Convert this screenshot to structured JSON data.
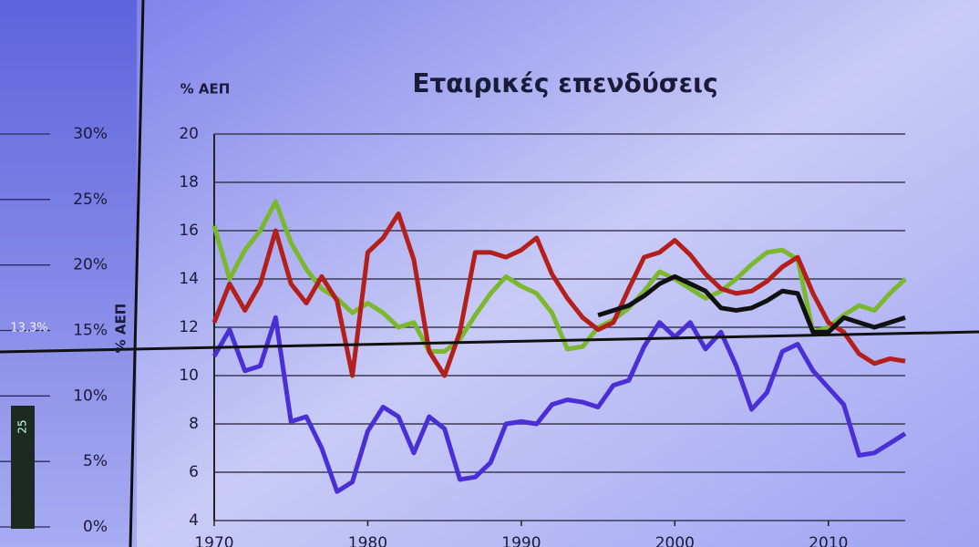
{
  "chart_data": [
    {
      "type": "line",
      "title": "Εταιρικές επενδύσεις",
      "yunit": "% ΑΕΠ",
      "ylabel": "% ΑΕΠ",
      "x": [
        1970,
        1971,
        1972,
        1973,
        1974,
        1975,
        1976,
        1977,
        1978,
        1979,
        1980,
        1981,
        1982,
        1983,
        1984,
        1985,
        1986,
        1987,
        1988,
        1989,
        1990,
        1991,
        1992,
        1993,
        1994,
        1995,
        1996,
        1997,
        1998,
        1999,
        2000,
        2001,
        2002,
        2003,
        2004,
        2005,
        2006,
        2007,
        2008,
        2009,
        2010,
        2011,
        2012,
        2013,
        2014,
        2015
      ],
      "series": [
        {
          "color": "#7cb82e",
          "values": [
            16.2,
            14.0,
            15.2,
            16.0,
            17.2,
            15.5,
            14.4,
            13.6,
            13.2,
            12.6,
            13.0,
            12.6,
            12.0,
            12.2,
            11.0,
            11.0,
            11.5,
            12.5,
            13.4,
            14.1,
            13.7,
            13.4,
            12.6,
            11.1,
            11.2,
            12.0,
            12.3,
            12.8,
            13.5,
            14.3,
            14.0,
            13.6,
            13.2,
            13.5,
            14.0,
            14.6,
            15.1,
            15.2,
            14.8,
            11.8,
            12.0,
            12.5,
            12.9,
            12.7,
            13.4,
            14.0
          ]
        },
        {
          "color": "#b3201c",
          "values": [
            12.2,
            13.8,
            12.7,
            13.8,
            16.0,
            13.8,
            13.0,
            14.1,
            13.1,
            10.0,
            15.1,
            15.7,
            16.7,
            14.8,
            11.0,
            10.0,
            11.8,
            15.1,
            15.1,
            14.9,
            15.2,
            15.7,
            14.2,
            13.2,
            12.4,
            11.9,
            12.2,
            13.6,
            14.9,
            15.1,
            15.6,
            15.0,
            14.2,
            13.6,
            13.4,
            13.5,
            13.9,
            14.5,
            14.9,
            13.4,
            12.2,
            11.8,
            10.9,
            10.5,
            10.7,
            10.6
          ]
        },
        {
          "color": "#4a2ed6",
          "values": [
            10.8,
            11.9,
            10.2,
            10.4,
            12.4,
            8.1,
            8.3,
            7.0,
            5.2,
            5.6,
            7.7,
            8.7,
            8.3,
            6.8,
            8.3,
            7.8,
            5.7,
            5.8,
            6.4,
            8.0,
            8.1,
            8.0,
            8.8,
            9.0,
            8.9,
            8.7,
            9.6,
            9.8,
            11.2,
            12.2,
            11.6,
            12.2,
            11.1,
            11.8,
            10.4,
            8.6,
            9.3,
            11.0,
            11.3,
            10.2,
            9.5,
            8.8,
            6.7,
            6.8,
            7.2,
            7.6
          ]
        },
        {
          "color": "#111111",
          "values": [
            null,
            null,
            null,
            null,
            null,
            null,
            null,
            null,
            null,
            null,
            null,
            null,
            null,
            null,
            null,
            null,
            null,
            null,
            null,
            null,
            null,
            null,
            null,
            null,
            null,
            12.5,
            12.7,
            12.9,
            13.3,
            13.8,
            14.1,
            13.8,
            13.5,
            12.8,
            12.7,
            12.8,
            13.1,
            13.5,
            13.4,
            11.8,
            11.8,
            12.4,
            12.2,
            12.0,
            12.2,
            12.4
          ]
        }
      ],
      "xlim": [
        1970,
        2015
      ],
      "xticks": [
        1970,
        1980,
        1990,
        2000,
        2010
      ],
      "ylim": [
        4,
        20
      ],
      "yticks": [
        4,
        6,
        8,
        10,
        12,
        14,
        16,
        18,
        20
      ],
      "grid": true
    },
    {
      "type": "partial",
      "annotations": [
        "13,3%",
        "25"
      ],
      "ylim": [
        0,
        30
      ],
      "yticks": [
        {
          "value": 0,
          "label": "0%"
        },
        {
          "value": 5,
          "label": "5%"
        },
        {
          "value": 10,
          "label": "10%"
        },
        {
          "value": 15,
          "label": "15%"
        },
        {
          "value": 20,
          "label": "20%"
        },
        {
          "value": 25,
          "label": "25%"
        },
        {
          "value": 30,
          "label": "30%"
        }
      ]
    }
  ]
}
